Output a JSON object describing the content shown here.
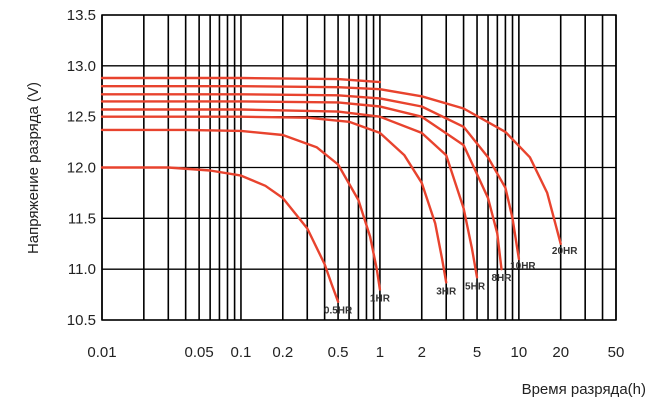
{
  "chart_data": {
    "type": "line",
    "title": "",
    "xlabel": "Время разряда(h)",
    "ylabel": "Напряжение разряда (V)",
    "xscale": "log",
    "xlim": [
      0.01,
      50
    ],
    "ylim": [
      10.5,
      13.5
    ],
    "grid": true,
    "legend": "none",
    "x_ticks": [
      "0.01",
      "0.05",
      "0.1",
      "0.2",
      "0.5",
      "1",
      "2",
      "5",
      "10",
      "20",
      "50"
    ],
    "x_tick_values": [
      0.01,
      0.05,
      0.1,
      0.2,
      0.5,
      1,
      2,
      5,
      10,
      20,
      50
    ],
    "y_ticks": [
      "10.5",
      "11.0",
      "11.5",
      "12.0",
      "12.5",
      "13.0",
      "13.5"
    ],
    "y_tick_values": [
      10.5,
      11.0,
      11.5,
      12.0,
      12.5,
      13.0,
      13.5
    ],
    "line_color": "#e8432e",
    "series": [
      {
        "name": "0.5HR",
        "x": [
          0.01,
          0.03,
          0.06,
          0.1,
          0.15,
          0.2,
          0.3,
          0.4,
          0.45,
          0.5
        ],
        "y": [
          12.0,
          12.0,
          11.97,
          11.92,
          11.82,
          11.7,
          11.4,
          11.05,
          10.85,
          10.68
        ]
      },
      {
        "name": "1HR",
        "x": [
          0.01,
          0.04,
          0.1,
          0.2,
          0.35,
          0.5,
          0.7,
          0.85,
          0.95,
          1.0
        ],
        "y": [
          12.37,
          12.37,
          12.36,
          12.32,
          12.2,
          12.03,
          11.68,
          11.32,
          11.0,
          10.8
        ]
      },
      {
        "name": "3HR",
        "x": [
          0.01,
          0.05,
          0.1,
          0.3,
          0.6,
          1.0,
          1.5,
          2.0,
          2.5,
          2.8,
          3.0
        ],
        "y": [
          12.5,
          12.5,
          12.5,
          12.49,
          12.45,
          12.34,
          12.12,
          11.85,
          11.45,
          11.1,
          10.87
        ]
      },
      {
        "name": "5HR",
        "x": [
          0.01,
          0.1,
          0.5,
          1.0,
          2.0,
          3.0,
          4.0,
          4.6,
          5.0
        ],
        "y": [
          12.57,
          12.57,
          12.55,
          12.5,
          12.34,
          12.12,
          11.6,
          11.2,
          10.92
        ]
      },
      {
        "name": "8HR",
        "x": [
          0.01,
          0.1,
          0.5,
          1.0,
          2.0,
          4.0,
          6.0,
          7.0,
          7.5
        ],
        "y": [
          12.65,
          12.65,
          12.64,
          12.6,
          12.5,
          12.22,
          11.7,
          11.35,
          11.0
        ]
      },
      {
        "name": "10HR",
        "x": [
          0.01,
          0.1,
          0.5,
          1.0,
          2.0,
          4.0,
          6.0,
          8.0,
          9.0,
          10.0
        ],
        "y": [
          12.72,
          12.72,
          12.71,
          12.68,
          12.6,
          12.4,
          12.1,
          11.8,
          11.5,
          11.1
        ]
      },
      {
        "name": "20HR",
        "x": [
          0.01,
          0.1,
          0.5,
          1.0,
          2.0,
          4.0,
          8.0,
          12.0,
          16.0,
          20.0
        ],
        "y": [
          12.8,
          12.8,
          12.79,
          12.77,
          12.7,
          12.58,
          12.35,
          12.1,
          11.75,
          11.25
        ]
      },
      {
        "name": "",
        "x": [
          0.01,
          0.1,
          0.5,
          1.0
        ],
        "y": [
          12.88,
          12.88,
          12.87,
          12.84
        ]
      }
    ]
  }
}
